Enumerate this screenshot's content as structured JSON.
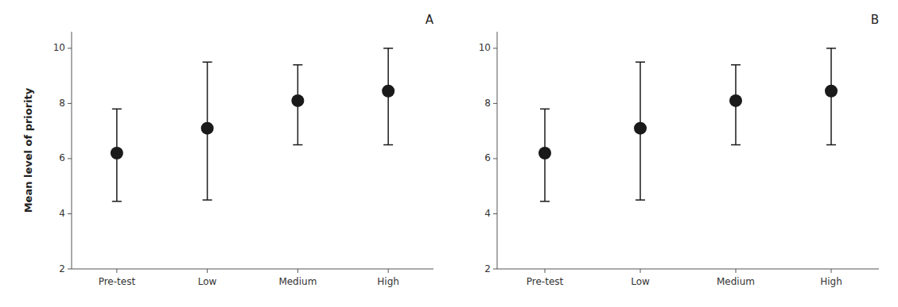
{
  "chart_data": [
    {
      "type": "errorbar",
      "title": "A",
      "categories": [
        "Pre-test",
        "Low",
        "Medium",
        "High"
      ],
      "values": [
        6.2,
        7.1,
        8.1,
        8.45
      ],
      "error_lower": [
        1.75,
        2.6,
        1.6,
        1.95
      ],
      "error_upper": [
        1.6,
        2.4,
        1.3,
        1.55
      ],
      "ylabel": "Mean level of priority",
      "ylim": [
        2,
        10.6
      ],
      "yticks": [
        2,
        4,
        6,
        8,
        10
      ],
      "color": "#1a1a1a",
      "grid": false
    },
    {
      "type": "errorbar",
      "title": "B",
      "categories": [
        "Pre-test",
        "Low",
        "Medium",
        "High"
      ],
      "values": [
        6.2,
        7.1,
        8.1,
        8.45
      ],
      "error_lower": [
        1.75,
        2.6,
        1.6,
        1.95
      ],
      "error_upper": [
        1.6,
        2.4,
        1.3,
        1.55
      ],
      "ylim": [
        2,
        10.6
      ],
      "yticks": [
        2,
        4,
        6,
        8,
        10
      ],
      "color": "#1a1a1a",
      "grid": false
    }
  ]
}
